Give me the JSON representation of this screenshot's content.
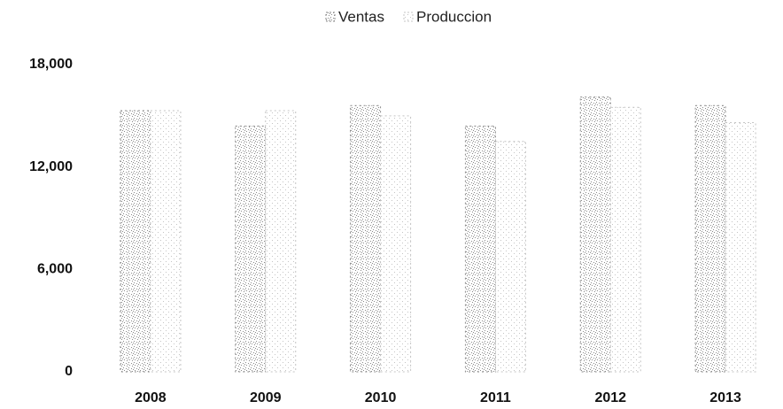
{
  "chart_data": {
    "type": "bar",
    "categories": [
      "2008",
      "2009",
      "2010",
      "2011",
      "2012",
      "2013"
    ],
    "series": [
      {
        "name": "Ventas",
        "color": "#8a8a8a",
        "values": [
          15300,
          14400,
          15600,
          14400,
          16100,
          15600
        ]
      },
      {
        "name": "Produccion",
        "color": "#c4c4c4",
        "values": [
          15300,
          15300,
          15000,
          13500,
          15500,
          14600
        ]
      }
    ],
    "ylim": [
      0,
      18000
    ],
    "yticks": [
      0,
      {
        "value": 6000,
        "label": "6,000"
      },
      {
        "value": 12000,
        "label": "12,000"
      },
      {
        "value": 18000,
        "label": "18,000"
      }
    ],
    "legend": "top"
  }
}
